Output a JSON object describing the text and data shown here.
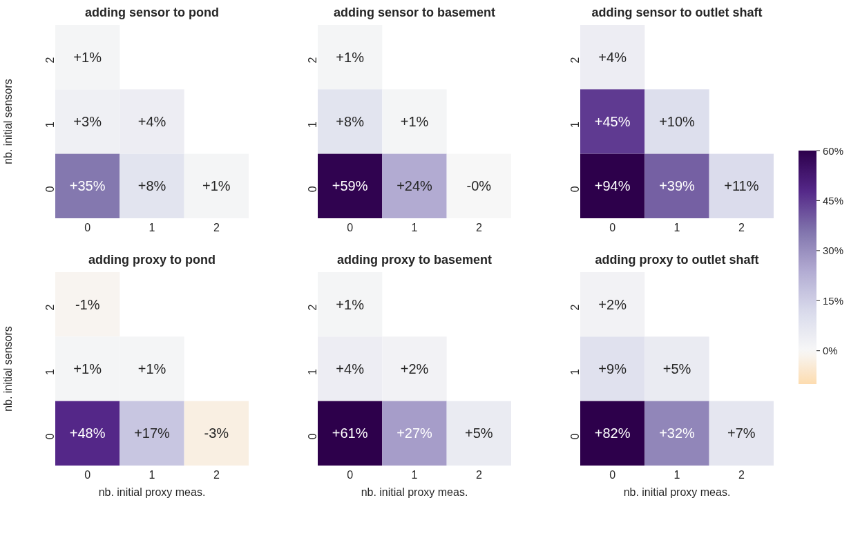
{
  "chart_data": [
    {
      "type": "heatmap",
      "title": "adding sensor to pond",
      "ylabel": "nb. initial sensors",
      "categories": [
        "0",
        "1",
        "2"
      ],
      "y_categories": [
        "2",
        "1",
        "0"
      ],
      "cells": [
        [
          1,
          null,
          null
        ],
        [
          3,
          4,
          null
        ],
        [
          35,
          8,
          1
        ]
      ],
      "cell_labels": [
        [
          "+1%",
          null,
          null
        ],
        [
          "+3%",
          "+4%",
          null
        ],
        [
          "+35%",
          "+8%",
          "+1%"
        ]
      ]
    },
    {
      "type": "heatmap",
      "title": "adding sensor to basement",
      "categories": [
        "0",
        "1",
        "2"
      ],
      "y_categories": [
        "2",
        "1",
        "0"
      ],
      "cells": [
        [
          1,
          null,
          null
        ],
        [
          8,
          1,
          null
        ],
        [
          59,
          24,
          0
        ]
      ],
      "cell_labels": [
        [
          "+1%",
          null,
          null
        ],
        [
          "+8%",
          "+1%",
          null
        ],
        [
          "+59%",
          "+24%",
          "-0%"
        ]
      ]
    },
    {
      "type": "heatmap",
      "title": "adding sensor to outlet shaft",
      "categories": [
        "0",
        "1",
        "2"
      ],
      "y_categories": [
        "2",
        "1",
        "0"
      ],
      "clim": [
        -10,
        60
      ],
      "cticks": [
        {
          "value": 0,
          "label": "0%"
        },
        {
          "value": 15,
          "label": "15%"
        },
        {
          "value": 30,
          "label": "30%"
        },
        {
          "value": 45,
          "label": "45%"
        },
        {
          "value": 60,
          "label": "60%"
        }
      ],
      "cells": [
        [
          4,
          null,
          null
        ],
        [
          45,
          10,
          null
        ],
        [
          94,
          39,
          11
        ]
      ],
      "cell_labels": [
        [
          "+4%",
          null,
          null
        ],
        [
          "+45%",
          "+10%",
          null
        ],
        [
          "+94%",
          "+39%",
          "+11%"
        ]
      ]
    },
    {
      "type": "heatmap",
      "title": "adding proxy to pond",
      "xlabel": "nb. initial proxy meas.",
      "ylabel": "nb. initial sensors",
      "categories": [
        "0",
        "1",
        "2"
      ],
      "y_categories": [
        "2",
        "1",
        "0"
      ],
      "cells": [
        [
          -1,
          null,
          null
        ],
        [
          1,
          1,
          null
        ],
        [
          48,
          17,
          -3
        ]
      ],
      "cell_labels": [
        [
          "-1%",
          null,
          null
        ],
        [
          "+1%",
          "+1%",
          null
        ],
        [
          "+48%",
          "+17%",
          "-3%"
        ]
      ]
    },
    {
      "type": "heatmap",
      "title": "adding proxy to basement",
      "xlabel": "nb. initial proxy meas.",
      "categories": [
        "0",
        "1",
        "2"
      ],
      "y_categories": [
        "2",
        "1",
        "0"
      ],
      "cells": [
        [
          1,
          null,
          null
        ],
        [
          4,
          2,
          null
        ],
        [
          61,
          27,
          5
        ]
      ],
      "cell_labels": [
        [
          "+1%",
          null,
          null
        ],
        [
          "+4%",
          "+2%",
          null
        ],
        [
          "+61%",
          "+27%",
          "+5%"
        ]
      ]
    },
    {
      "type": "heatmap",
      "title": "adding proxy to outlet shaft",
      "xlabel": "nb. initial proxy meas.",
      "categories": [
        "0",
        "1",
        "2"
      ],
      "y_categories": [
        "2",
        "1",
        "0"
      ],
      "cells": [
        [
          2,
          null,
          null
        ],
        [
          9,
          5,
          null
        ],
        [
          82,
          32,
          7
        ]
      ],
      "cell_labels": [
        [
          "+2%",
          null,
          null
        ],
        [
          "+9%",
          "+5%",
          null
        ],
        [
          "+82%",
          "+32%",
          "+7%"
        ]
      ]
    }
  ]
}
